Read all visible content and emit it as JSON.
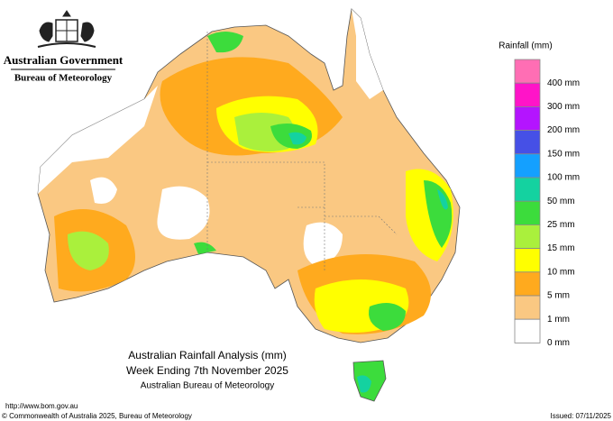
{
  "header": {
    "government": "Australian Government",
    "agency": "Bureau of Meteorology"
  },
  "legend": {
    "title": "Rainfall (mm)",
    "items": [
      {
        "label": "400 mm",
        "color": "#ff6eb4"
      },
      {
        "label": "300 mm",
        "color": "#ff14c8"
      },
      {
        "label": "200 mm",
        "color": "#b414ff"
      },
      {
        "label": "150 mm",
        "color": "#4650e6"
      },
      {
        "label": "100 mm",
        "color": "#14a0ff"
      },
      {
        "label": "50 mm",
        "color": "#14d2a0"
      },
      {
        "label": "25 mm",
        "color": "#3cdc3c"
      },
      {
        "label": "15 mm",
        "color": "#aaf03c"
      },
      {
        "label": "10 mm",
        "color": "#ffff00"
      },
      {
        "label": "5 mm",
        "color": "#ffaa1e"
      },
      {
        "label": "1 mm",
        "color": "#fac882"
      },
      {
        "label": "0 mm",
        "color": "#ffffff"
      }
    ]
  },
  "map_title": {
    "line1": "Australian Rainfall Analysis (mm)",
    "line2": "Week Ending 7th November 2025",
    "line3": "Australian Bureau of Meteorology"
  },
  "footer": {
    "url": "http://www.bom.gov.au",
    "copyright": "© Commonwealth of Australia 2025, Bureau of Meteorology",
    "issued": "Issued: 07/11/2025"
  }
}
